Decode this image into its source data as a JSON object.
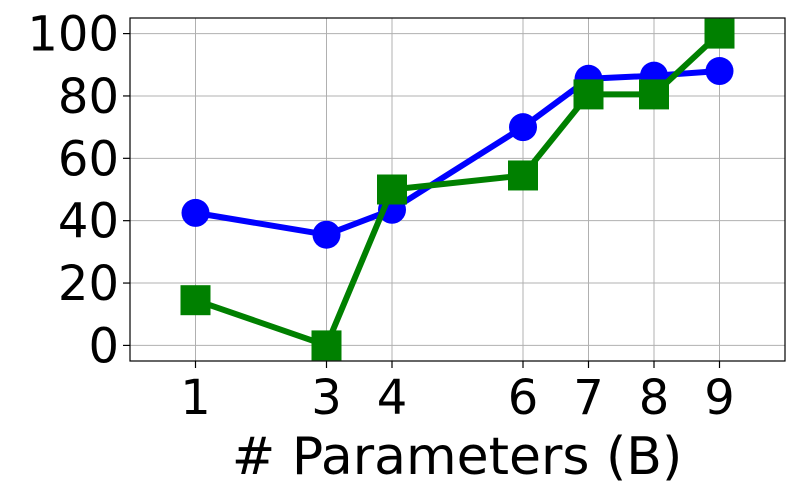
{
  "chart_data": {
    "type": "line",
    "title": "",
    "xlabel": "# Parameters (B)",
    "ylabel": "",
    "x": [
      1,
      3,
      4,
      6,
      7,
      8,
      9
    ],
    "xticks": [
      1,
      3,
      4,
      6,
      7,
      8,
      9
    ],
    "yticks": [
      0,
      20,
      40,
      60,
      80,
      100
    ],
    "xlim": [
      0,
      10
    ],
    "ylim": [
      -5,
      105
    ],
    "grid": true,
    "series": [
      {
        "marker": "circle",
        "color": "#0000ff",
        "values": [
          42.5,
          35.5,
          43.5,
          70,
          85.5,
          86.5,
          88
        ]
      },
      {
        "marker": "square",
        "color": "#008000",
        "values": [
          14.5,
          0,
          50,
          54.5,
          80.5,
          80.5,
          100
        ]
      }
    ]
  }
}
